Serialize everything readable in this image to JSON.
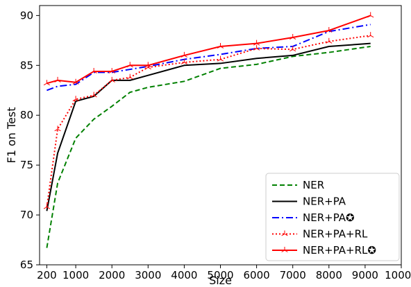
{
  "chart_data": {
    "type": "line",
    "title": "",
    "xlabel": "Size",
    "ylabel": "F1 on Test",
    "xlim": [
      0,
      10000
    ],
    "ylim": [
      65,
      91
    ],
    "xticks": [
      200,
      1000,
      2000,
      3000,
      4000,
      5000,
      6000,
      7000,
      8000,
      9000,
      10000
    ],
    "yticks": [
      65,
      70,
      75,
      80,
      85,
      90
    ],
    "grid": false,
    "legend_position": "lower-right",
    "series": [
      {
        "name": "NER",
        "color": "#008000",
        "style": "dashed",
        "marker": "none",
        "x": [
          200,
          500,
          1000,
          1500,
          2000,
          2500,
          3000,
          4000,
          5000,
          6000,
          7000,
          8000,
          9150
        ],
        "y": [
          66.7,
          73.2,
          77.7,
          79.6,
          80.9,
          82.3,
          82.8,
          83.4,
          84.7,
          85.1,
          85.9,
          86.3,
          86.9
        ]
      },
      {
        "name": "NER+PA",
        "color": "#000000",
        "style": "solid",
        "marker": "none",
        "x": [
          200,
          500,
          1000,
          1500,
          2000,
          2500,
          3000,
          4000,
          5000,
          6000,
          7000,
          8000,
          9150
        ],
        "y": [
          70.4,
          76.2,
          81.4,
          81.9,
          83.5,
          83.5,
          84.0,
          85.0,
          85.2,
          85.7,
          86.0,
          86.9,
          87.2
        ]
      },
      {
        "name": "NER+PA✪",
        "color": "#0000ff",
        "style": "dashdot",
        "marker": "none",
        "x": [
          200,
          500,
          1000,
          1500,
          2000,
          2500,
          3000,
          4000,
          5000,
          6000,
          7000,
          8000,
          9150
        ],
        "y": [
          82.5,
          82.9,
          83.1,
          84.3,
          84.3,
          84.6,
          84.9,
          85.6,
          86.1,
          86.7,
          86.9,
          88.4,
          89.1
        ]
      },
      {
        "name": "NER+PA+RL",
        "color": "#ff0000",
        "style": "dotted",
        "marker": "tri",
        "x": [
          200,
          500,
          1000,
          1500,
          2000,
          2500,
          3000,
          4000,
          5000,
          6000,
          7000,
          8000,
          9150
        ],
        "y": [
          70.8,
          78.6,
          81.6,
          82.0,
          83.5,
          83.8,
          84.8,
          85.3,
          85.6,
          86.7,
          86.6,
          87.4,
          88.0
        ]
      },
      {
        "name": "NER+PA+RL✪",
        "color": "#ff0000",
        "style": "solid",
        "marker": "tri",
        "x": [
          200,
          500,
          1000,
          1500,
          2000,
          2500,
          3000,
          4000,
          5000,
          6000,
          7000,
          8000,
          9150
        ],
        "y": [
          83.2,
          83.5,
          83.3,
          84.4,
          84.4,
          85.0,
          85.0,
          86.0,
          86.9,
          87.2,
          87.8,
          88.5,
          90.0
        ]
      }
    ]
  }
}
